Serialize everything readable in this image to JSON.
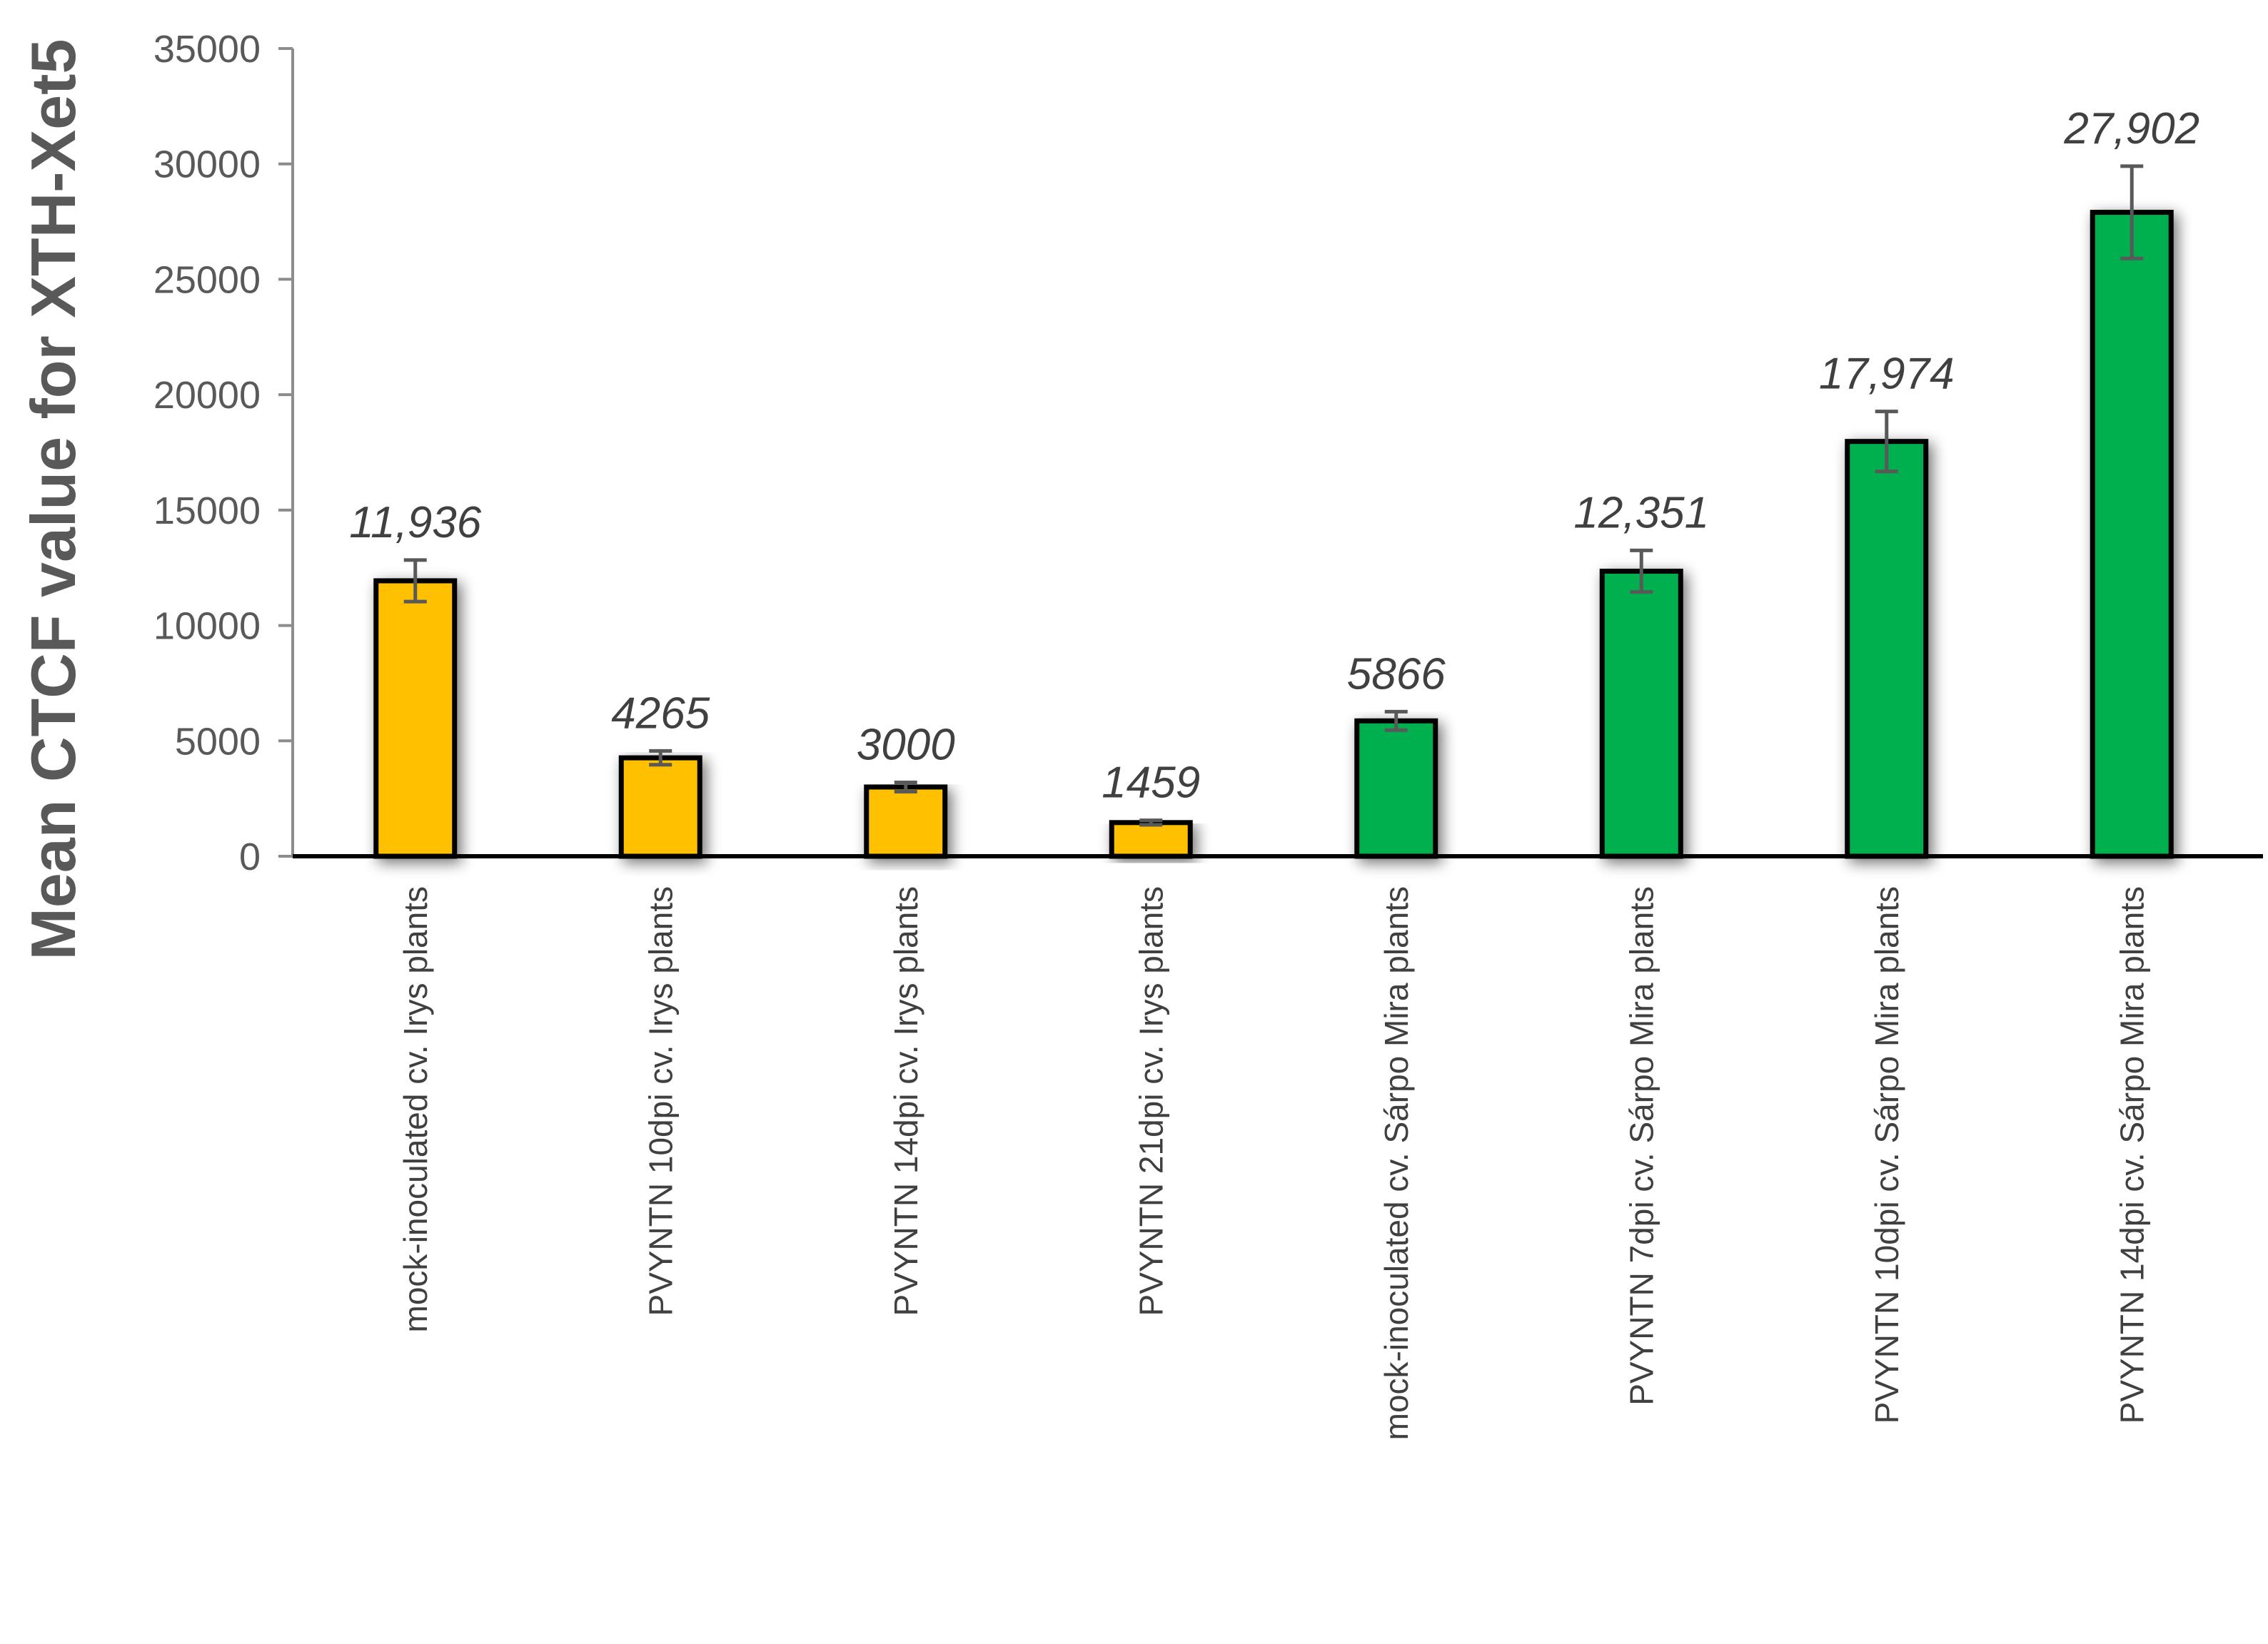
{
  "chart_data": {
    "type": "bar",
    "title": "",
    "xlabel": "",
    "ylabel": "Mean CTCF value for XTH-Xet5",
    "ylim": [
      0,
      35000
    ],
    "yticks": [
      0,
      5000,
      10000,
      15000,
      20000,
      25000,
      30000,
      35000
    ],
    "ytick_labels": [
      "0",
      "5000",
      "10000",
      "15000",
      "20000",
      "25000",
      "30000",
      "35000"
    ],
    "grid": false,
    "categories": [
      "mock-inoculated cv. Irys plants",
      "PVYNTN 10dpi cv. Irys plants",
      "PVYNTN 14dpi cv. Irys  plants",
      "PVYNTN 21dpi cv. Irys plants",
      "mock-inoculated cv. Sárpo Mira plants",
      "PVYNTN 7dpi cv. Sárpo Mira plants",
      "PVYNTN 10dpi  cv. Sárpo Mira plants",
      "PVYNTN 14dpi cv. Sárpo Mira plants"
    ],
    "values": [
      11936,
      4265,
      3000,
      1459,
      5866,
      12351,
      17974,
      27902
    ],
    "value_labels": [
      "11,936",
      "4265",
      "3000",
      "1459",
      "5866",
      "12,351",
      "17,974",
      "27,902"
    ],
    "error": [
      900,
      300,
      200,
      100,
      400,
      900,
      1300,
      2000
    ],
    "colors": [
      "#FFC000",
      "#FFC000",
      "#FFC000",
      "#FFC000",
      "#00B050",
      "#00B050",
      "#00B050",
      "#00B050"
    ]
  }
}
